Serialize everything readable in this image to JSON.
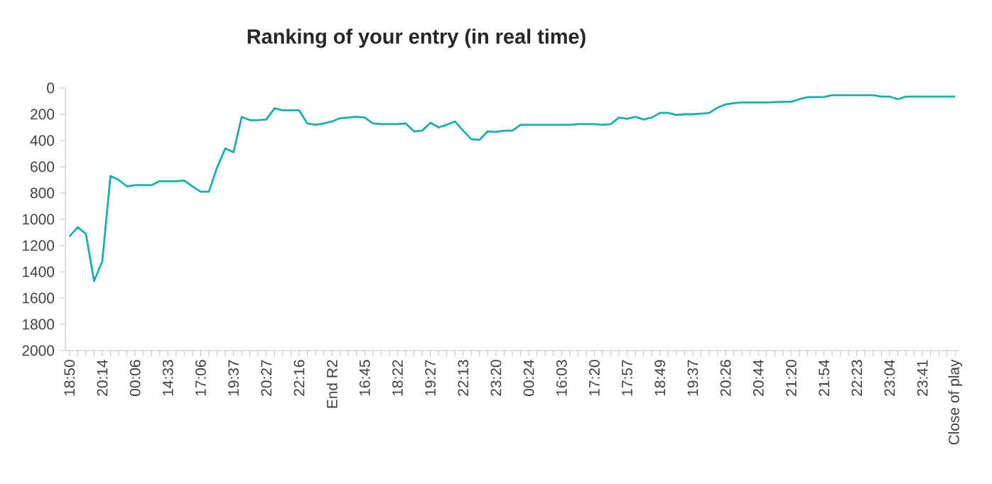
{
  "chart_data": {
    "type": "line",
    "title": "Ranking of your entry (in real time)",
    "categories": [
      "18:50",
      null,
      null,
      null,
      "20:14",
      null,
      null,
      null,
      "00:06",
      null,
      null,
      null,
      "14:33",
      null,
      null,
      null,
      "17:06",
      null,
      null,
      null,
      "19:37",
      null,
      null,
      null,
      "20:27",
      null,
      null,
      null,
      "22:16",
      null,
      null,
      null,
      "End R2",
      null,
      null,
      null,
      "16:45",
      null,
      null,
      null,
      "18:22",
      null,
      null,
      null,
      "19:27",
      null,
      null,
      null,
      "22:13",
      null,
      null,
      null,
      "23:20",
      null,
      null,
      null,
      "00:24",
      null,
      null,
      null,
      "16:03",
      null,
      null,
      null,
      "17:20",
      null,
      null,
      null,
      "17:57",
      null,
      null,
      null,
      "18:49",
      null,
      null,
      null,
      "19:37",
      null,
      null,
      null,
      "20:26",
      null,
      null,
      null,
      "20:44",
      null,
      null,
      null,
      "21:20",
      null,
      null,
      null,
      "21:54",
      null,
      null,
      null,
      "22:23",
      null,
      null,
      null,
      "23:04",
      null,
      null,
      null,
      "23:41",
      null,
      null,
      null,
      "Close of play"
    ],
    "series": [
      {
        "color": "#1aafa8",
        "values": [
          1130,
          1060,
          1110,
          1470,
          1320,
          670,
          700,
          750,
          740,
          740,
          740,
          710,
          710,
          710,
          705,
          750,
          790,
          790,
          605,
          460,
          490,
          220,
          245,
          245,
          240,
          155,
          170,
          170,
          170,
          270,
          280,
          270,
          255,
          230,
          225,
          220,
          225,
          270,
          275,
          275,
          275,
          270,
          330,
          325,
          265,
          300,
          280,
          255,
          325,
          390,
          395,
          330,
          335,
          325,
          325,
          280,
          280,
          280,
          280,
          280,
          280,
          280,
          275,
          275,
          275,
          280,
          275,
          225,
          235,
          220,
          240,
          225,
          190,
          190,
          205,
          200,
          200,
          195,
          190,
          150,
          125,
          115,
          110,
          110,
          110,
          110,
          108,
          105,
          105,
          85,
          70,
          70,
          68,
          55,
          55,
          55,
          55,
          55,
          55,
          65,
          65,
          85,
          65,
          65,
          65,
          65,
          65,
          65,
          65
        ]
      }
    ],
    "ylim": [
      2000,
      0
    ],
    "yticks": [
      0,
      200,
      400,
      600,
      800,
      1000,
      1200,
      1400,
      1600,
      1800,
      2000
    ],
    "grid": false,
    "legend": false,
    "marker": "none",
    "line_style": "solid"
  }
}
